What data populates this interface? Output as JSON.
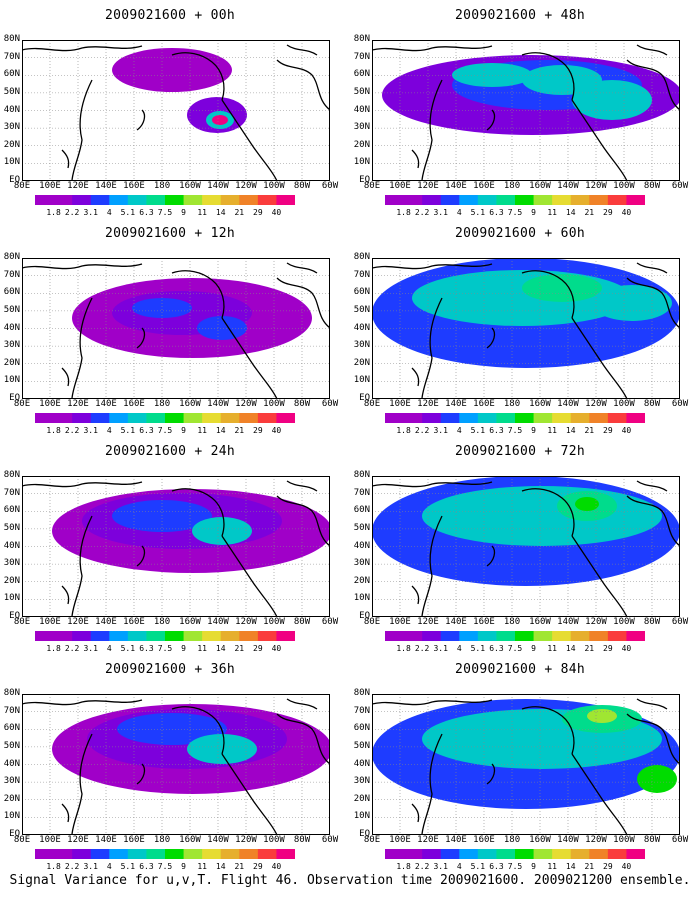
{
  "panels": [
    {
      "title": "2009021600 + 00h"
    },
    {
      "title": "2009021600 + 48h"
    },
    {
      "title": "2009021600 + 12h"
    },
    {
      "title": "2009021600 + 60h"
    },
    {
      "title": "2009021600 + 24h"
    },
    {
      "title": "2009021600 + 72h"
    },
    {
      "title": "2009021600 + 36h"
    },
    {
      "title": "2009021600 + 84h"
    }
  ],
  "lat_labels": [
    "80N",
    "70N",
    "60N",
    "50N",
    "40N",
    "30N",
    "20N",
    "10N",
    "EQ"
  ],
  "lon_labels": [
    "80E",
    "100E",
    "120E",
    "140E",
    "160E",
    "180",
    "160W",
    "140W",
    "120W",
    "100W",
    "80W",
    "60W"
  ],
  "colorbar": {
    "labels": [
      "1.8",
      "2.2",
      "3.1",
      "4",
      "5.1",
      "6.3",
      "7.5",
      "9",
      "11",
      "14",
      "21",
      "29",
      "40"
    ],
    "colors": [
      "#a000c8",
      "#7d00dc",
      "#1e3cff",
      "#00a0ff",
      "#00c8c8",
      "#00dc8c",
      "#00dc00",
      "#a0e632",
      "#e6dc32",
      "#e6af2d",
      "#f08228",
      "#fa3c3c",
      "#f00082"
    ]
  },
  "caption": "Signal Variance for u,v,T. Flight 46. Observation time 2009021600. 2009021200 ensemble."
}
